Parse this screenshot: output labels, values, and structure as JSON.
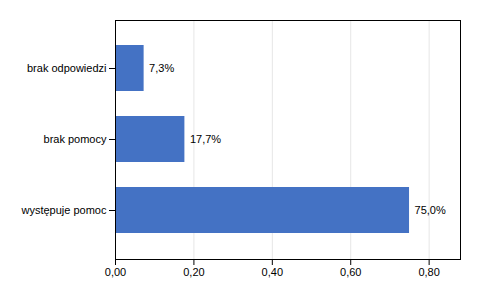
{
  "chart_data": {
    "type": "bar",
    "orientation": "horizontal",
    "categories": [
      "występuje pomoc",
      "brak pomocy",
      "brak odpowiedzi"
    ],
    "values": [
      0.75,
      0.177,
      0.073
    ],
    "value_labels": [
      "75,0%",
      "17,7%",
      "7,3%"
    ],
    "data_labels": true,
    "color": "#4472C4",
    "xlim": [
      0.0,
      0.88
    ],
    "xticks": [
      {
        "value": 0.0,
        "label": "0,00"
      },
      {
        "value": 0.2,
        "label": "0,20"
      },
      {
        "value": 0.4,
        "label": "0,40"
      },
      {
        "value": 0.6,
        "label": "0,60"
      },
      {
        "value": 0.8,
        "label": "0,80"
      }
    ],
    "grid": true
  }
}
